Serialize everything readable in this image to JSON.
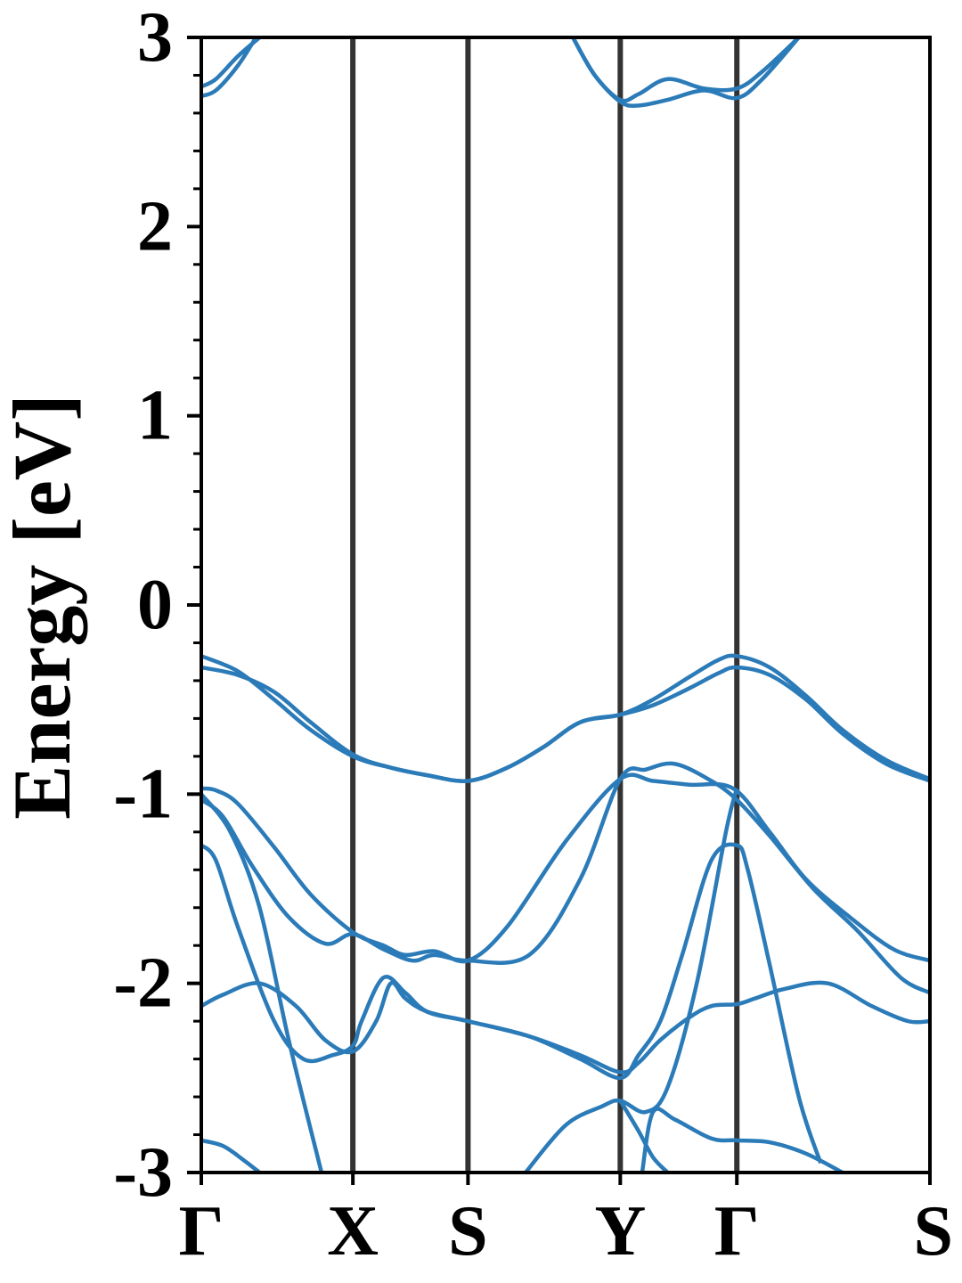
{
  "chart_data": {
    "type": "line",
    "title": "",
    "xlabel": "",
    "ylabel": "Energy [eV]",
    "ylim": [
      -3,
      3
    ],
    "y_ticks": [
      "3",
      "2",
      "1",
      "0",
      "-1",
      "-2",
      "-3"
    ],
    "y_minor_step": 0.2,
    "x_ticks": [
      "Γ",
      "X",
      "S",
      "Y",
      "Γ",
      "S"
    ],
    "x_tick_positions": [
      0,
      0.208,
      0.366,
      0.575,
      0.735,
      1.0
    ],
    "grid": false,
    "legend": "none",
    "colors": {
      "bands": "#2b7bb9",
      "kpath_lines": "#333333",
      "axes": "#000000"
    },
    "series": [
      {
        "x": [
          0,
          0.05,
          0.1,
          0.15,
          0.208,
          0.26,
          0.31,
          0.366,
          0.42,
          0.47,
          0.52,
          0.575,
          0.62,
          0.67,
          0.71,
          0.735,
          0.78,
          0.83,
          0.88,
          0.94,
          1.0
        ],
        "values": [
          -0.27,
          -0.35,
          -0.5,
          -0.66,
          -0.8,
          -0.86,
          -0.9,
          -0.93,
          -0.86,
          -0.75,
          -0.62,
          -0.58,
          -0.5,
          -0.38,
          -0.29,
          -0.27,
          -0.33,
          -0.48,
          -0.66,
          -0.82,
          -0.92
        ]
      },
      {
        "x": [
          0,
          0.05,
          0.1,
          0.15,
          0.208,
          0.26,
          0.31,
          0.366,
          0.42,
          0.47,
          0.52,
          0.575,
          0.62,
          0.67,
          0.71,
          0.735,
          0.78,
          0.83,
          0.88,
          0.94,
          1.0
        ],
        "values": [
          -0.33,
          -0.37,
          -0.46,
          -0.62,
          -0.79,
          -0.86,
          -0.9,
          -0.93,
          -0.86,
          -0.75,
          -0.62,
          -0.58,
          -0.53,
          -0.44,
          -0.36,
          -0.33,
          -0.37,
          -0.5,
          -0.68,
          -0.84,
          -0.93
        ]
      },
      {
        "x": [
          0,
          0.02,
          0.05,
          0.1,
          0.15,
          0.208,
          0.25,
          0.28,
          0.32,
          0.366,
          0.42,
          0.5,
          0.575,
          0.62,
          0.67,
          0.73,
          0.78,
          0.83,
          0.89,
          0.95,
          1.0
        ],
        "values": [
          -0.97,
          -0.98,
          -1.05,
          -1.28,
          -1.53,
          -1.73,
          -1.8,
          -1.85,
          -1.83,
          -1.88,
          -1.7,
          -1.25,
          -0.92,
          -0.93,
          -0.95,
          -0.97,
          -1.2,
          -1.45,
          -1.65,
          -1.82,
          -1.88
        ]
      },
      {
        "x": [
          0,
          0.03,
          0.07,
          0.12,
          0.17,
          0.208,
          0.25,
          0.29,
          0.32,
          0.366,
          0.45,
          0.52,
          0.575,
          0.61,
          0.65,
          0.7,
          0.735,
          0.78,
          0.84,
          0.9,
          0.96,
          1.0
        ],
        "values": [
          -1.03,
          -1.12,
          -1.38,
          -1.65,
          -1.79,
          -1.74,
          -1.82,
          -1.88,
          -1.85,
          -1.88,
          -1.85,
          -1.45,
          -0.92,
          -0.87,
          -0.84,
          -0.93,
          -1.03,
          -1.22,
          -1.5,
          -1.72,
          -1.97,
          -2.05
        ]
      },
      {
        "x": [
          0,
          0.02,
          0.05,
          0.1,
          0.14,
          0.18,
          0.208,
          0.22,
          0.25,
          0.28,
          0.31,
          0.366,
          0.45,
          0.52,
          0.575,
          0.6,
          0.63,
          0.67,
          0.7,
          0.735,
          0.76,
          0.8,
          0.86,
          0.92,
          0.97,
          1.0
        ],
        "values": [
          -1.27,
          -1.35,
          -1.7,
          -2.2,
          -2.4,
          -2.38,
          -2.33,
          -2.2,
          -1.97,
          -2.05,
          -2.15,
          -2.2,
          -2.28,
          -2.38,
          -2.47,
          -2.42,
          -2.3,
          -2.18,
          -2.12,
          -2.11,
          -2.08,
          -2.03,
          -2.0,
          -2.12,
          -2.2,
          -2.2
        ]
      },
      {
        "x": [
          0,
          0.03,
          0.08,
          0.13,
          0.17,
          0.208,
          0.24,
          0.26,
          0.28,
          0.31,
          0.366,
          0.45,
          0.52,
          0.575,
          0.6,
          0.63,
          0.66,
          0.7,
          0.735,
          0.75,
          0.78,
          0.82,
          0.85
        ],
        "values": [
          -2.12,
          -2.06,
          -2.0,
          -2.12,
          -2.3,
          -2.36,
          -2.2,
          -2.0,
          -2.08,
          -2.15,
          -2.2,
          -2.28,
          -2.4,
          -2.5,
          -2.38,
          -2.2,
          -1.85,
          -1.35,
          -1.27,
          -1.4,
          -1.9,
          -2.6,
          -2.95
        ]
      },
      {
        "x": [
          0,
          0.04,
          0.08,
          0.12,
          0.165
        ],
        "values": [
          -1.0,
          -1.2,
          -1.6,
          -2.3,
          -3.0
        ]
      },
      {
        "x": [
          0.445,
          0.5,
          0.55,
          0.575,
          0.61,
          0.64,
          0.68,
          0.72,
          0.735
        ],
        "values": [
          -3.0,
          -2.75,
          -2.65,
          -2.62,
          -2.68,
          -2.55,
          -2.0,
          -1.2,
          -0.97
        ]
      },
      {
        "x": [
          0.575,
          0.6,
          0.62,
          0.64
        ],
        "values": [
          -2.62,
          -2.78,
          -2.92,
          -3.0
        ]
      },
      {
        "x": [
          0.605,
          0.62,
          0.65,
          0.7,
          0.735,
          0.78,
          0.83,
          0.88
        ],
        "values": [
          -3.0,
          -2.68,
          -2.72,
          -2.82,
          -2.83,
          -2.84,
          -2.9,
          -3.0
        ]
      },
      {
        "x": [
          0,
          0.03,
          0.06,
          0.08
        ],
        "values": [
          -2.83,
          -2.86,
          -2.94,
          -3.0
        ]
      },
      {
        "x": [
          0,
          0.02,
          0.05,
          0.075
        ],
        "values": [
          2.69,
          2.72,
          2.85,
          3.0
        ]
      },
      {
        "x": [
          0,
          0.02,
          0.05,
          0.08
        ],
        "values": [
          2.74,
          2.78,
          2.9,
          3.0
        ]
      },
      {
        "x": [
          0.51,
          0.54,
          0.575,
          0.6,
          0.64,
          0.69,
          0.735,
          0.77,
          0.82
        ],
        "values": [
          3.0,
          2.8,
          2.67,
          2.7,
          2.78,
          2.73,
          2.73,
          2.82,
          3.0
        ]
      },
      {
        "x": [
          0.51,
          0.54,
          0.575,
          0.6,
          0.64,
          0.69,
          0.735,
          0.77,
          0.82
        ],
        "values": [
          3.0,
          2.8,
          2.66,
          2.64,
          2.67,
          2.72,
          2.68,
          2.78,
          3.0
        ]
      }
    ]
  }
}
